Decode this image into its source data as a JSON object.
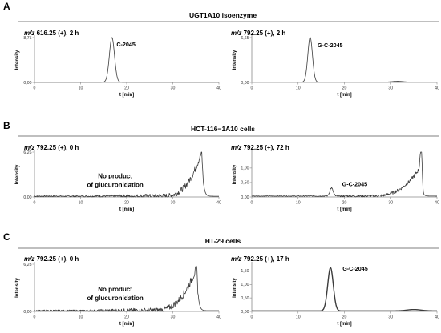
{
  "panels": [
    {
      "letter": "A",
      "title": "UGT1A10 isoenzyme"
    },
    {
      "letter": "B",
      "title": "HCT-116−1A10 cells"
    },
    {
      "letter": "C",
      "title": "HT-29 cells"
    }
  ],
  "chart_data": [
    {
      "type": "line",
      "title_mz": "m/z",
      "title_rest": "616.25 (+), 2 h",
      "xlabel": "t [min]",
      "ylabel": "Intensity",
      "xlim": [
        0,
        40
      ],
      "ylim": [
        0,
        8.75
      ],
      "xticks": [
        "0",
        "10",
        "20",
        "30",
        "40"
      ],
      "yticks": [
        "0,00",
        "8,75"
      ],
      "ytick_values": [
        0,
        8.75
      ],
      "peak_label": "C-2045",
      "peak_label_x": 17.8,
      "peak_label_y": 7.0,
      "series": [
        {
          "kind": "peak",
          "baseline": 0.05,
          "peaks": [
            [
              16.8,
              8.75,
              0.55
            ]
          ],
          "noise": 0.0,
          "thick": false
        }
      ]
    },
    {
      "type": "line",
      "title_mz": "m/z",
      "title_rest": "792.25 (+), 2 h",
      "xlabel": "t [min]",
      "ylabel": "Intensity",
      "xlim": [
        0,
        40
      ],
      "ylim": [
        0,
        6.65
      ],
      "xticks": [
        "0",
        "10",
        "20",
        "30",
        "40"
      ],
      "yticks": [
        "0,00",
        "6,65"
      ],
      "ytick_values": [
        0,
        6.65
      ],
      "peak_label": "G-C-2045",
      "peak_label_x": 14.2,
      "peak_label_y": 5.2,
      "series": [
        {
          "kind": "peak",
          "baseline": 0.05,
          "peaks": [
            [
              12.6,
              6.65,
              0.5
            ],
            [
              31.5,
              0.12,
              1.2
            ]
          ],
          "noise": 0.0,
          "thick": false
        }
      ]
    },
    {
      "type": "line",
      "title_mz": "m/z",
      "title_rest": "792.25 (+), 0 h",
      "xlabel": "t [min]",
      "ylabel": "Intensity",
      "xlim": [
        0,
        40
      ],
      "ylim": [
        0,
        6.26
      ],
      "xticks": [
        "0",
        "10",
        "20",
        "30",
        "40"
      ],
      "yticks": [
        "0,00",
        "6,26"
      ],
      "ytick_values": [
        0,
        6.26
      ],
      "annotation": [
        "No product",
        "of glucuronidation"
      ],
      "series": [
        {
          "kind": "rise",
          "baseline": 0.1,
          "start": 28,
          "peak_x": 36.3,
          "peak_y": 6.26,
          "noise": 0.35,
          "thick": false
        }
      ]
    },
    {
      "type": "line",
      "title_mz": "m/z",
      "title_rest": "792.25 (+), 72 h",
      "xlabel": "t [min]",
      "ylabel": "Intensity",
      "xlim": [
        0,
        40
      ],
      "ylim": [
        0,
        1.55
      ],
      "xticks": [
        "0",
        "10",
        "20",
        "30",
        "40"
      ],
      "yticks": [
        "0,00",
        "0,50",
        "1,00"
      ],
      "ytick_values": [
        0,
        0.5,
        1.0
      ],
      "peak_label": "G-C-2045",
      "peak_label_x": 19.5,
      "peak_label_y": 0.38,
      "series": [
        {
          "kind": "rise",
          "baseline": 0.03,
          "start": 26,
          "peak_x": 36.3,
          "peak_y": 1.0,
          "noise": 0.05,
          "extra_peaks": [
            [
              17.2,
              0.28,
              0.35
            ],
            [
              36.6,
              1.45,
              0.18
            ]
          ],
          "thick": false
        }
      ]
    },
    {
      "type": "line",
      "title_mz": "m/z",
      "title_rest": "792.25 (+), 0 h",
      "xlabel": "t [min]",
      "ylabel": "Intensity",
      "xlim": [
        0,
        40
      ],
      "ylim": [
        0,
        6.28
      ],
      "xticks": [
        "0",
        "10",
        "20",
        "30",
        "40"
      ],
      "yticks": [
        "0,00",
        "6,28"
      ],
      "ytick_values": [
        0,
        6.28
      ],
      "annotation": [
        "No product",
        "of glucuronidation"
      ],
      "series": [
        {
          "kind": "rise",
          "baseline": 0.1,
          "start": 26,
          "peak_x": 35.2,
          "peak_y": 5.8,
          "noise": 0.4,
          "thick": false
        }
      ]
    },
    {
      "type": "line",
      "title_mz": "m/z",
      "title_rest": "792.25 (+), 17 h",
      "xlabel": "t [min]",
      "ylabel": "Intensity",
      "xlim": [
        0,
        40
      ],
      "ylim": [
        0,
        1.75
      ],
      "xticks": [
        "0",
        "10",
        "20",
        "30",
        "40"
      ],
      "yticks": [
        "0,00",
        "0,50",
        "1,00",
        "1,50"
      ],
      "ytick_values": [
        0,
        0.5,
        1.0,
        1.5
      ],
      "peak_label": "G-C-2045",
      "peak_label_x": 19.6,
      "peak_label_y": 1.52,
      "series": [
        {
          "kind": "peak",
          "baseline": 0.02,
          "peaks": [
            [
              17.0,
              1.6,
              0.6
            ],
            [
              35.0,
              0.05,
              1.5
            ]
          ],
          "noise": 0.0,
          "thick": true
        }
      ]
    }
  ]
}
